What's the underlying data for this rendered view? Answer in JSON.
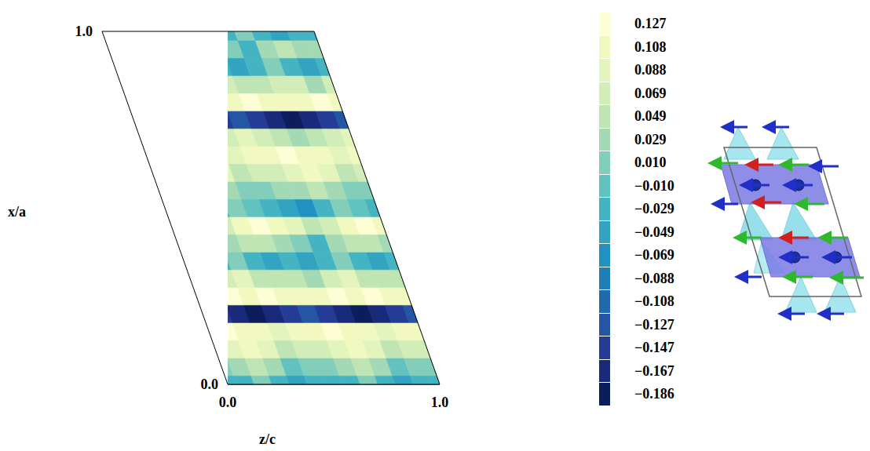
{
  "chart_data": {
    "type": "contour",
    "xlabel": "z/c",
    "ylabel": "x/a",
    "x": [
      0,
      0.083,
      0.167,
      0.25,
      0.333,
      0.417,
      0.5,
      0.583,
      0.667,
      0.75,
      0.833,
      0.917,
      1
    ],
    "y": [
      0,
      0.05,
      0.1,
      0.15,
      0.2,
      0.25,
      0.3,
      0.35,
      0.4,
      0.45,
      0.5,
      0.55,
      0.6,
      0.65,
      0.7,
      0.75,
      0.8,
      0.85,
      0.9,
      0.95,
      1
    ],
    "xlim": [
      0,
      1
    ],
    "ylim": [
      0,
      1
    ],
    "xticks": [
      {
        "value": 0,
        "label": "0.0"
      },
      {
        "value": 1,
        "label": "1.0"
      }
    ],
    "yticks": [
      {
        "value": 0,
        "label": "0.0"
      },
      {
        "value": 1,
        "label": "1.0"
      }
    ],
    "cells": [
      [
        -0.03,
        -0.02,
        0.0,
        -0.03,
        -0.05,
        -0.03,
        -0.03,
        -0.02,
        0.0,
        -0.03,
        -0.05,
        -0.03,
        -0.03
      ],
      [
        0.01,
        0.03,
        0.05,
        0.02,
        -0.01,
        0.0,
        0.01,
        0.03,
        0.05,
        0.02,
        -0.01,
        0.0,
        0.01
      ],
      [
        0.07,
        0.09,
        0.1,
        0.08,
        0.05,
        0.06,
        0.07,
        0.09,
        0.1,
        0.08,
        0.05,
        0.06,
        0.07
      ],
      [
        0.11,
        0.12,
        0.11,
        0.1,
        0.09,
        0.1,
        0.11,
        0.12,
        0.11,
        0.1,
        0.09,
        0.1,
        0.11
      ],
      [
        -0.13,
        -0.15,
        -0.17,
        -0.186,
        -0.17,
        -0.15,
        -0.13,
        -0.15,
        -0.17,
        -0.186,
        -0.17,
        -0.15,
        -0.13
      ],
      [
        0.1,
        0.11,
        0.12,
        0.11,
        0.12,
        0.11,
        0.1,
        0.11,
        0.12,
        0.11,
        0.12,
        0.11,
        0.1
      ],
      [
        0.05,
        0.03,
        0.06,
        0.08,
        0.05,
        0.04,
        0.05,
        0.03,
        0.06,
        0.08,
        0.05,
        0.04,
        0.05
      ],
      [
        -0.03,
        -0.05,
        -0.02,
        0.01,
        -0.02,
        -0.04,
        -0.03,
        -0.05,
        -0.02,
        0.01,
        -0.02,
        -0.04,
        -0.03
      ],
      [
        0.03,
        0.0,
        -0.03,
        0.02,
        0.05,
        0.04,
        0.03,
        0.0,
        -0.03,
        0.02,
        0.05,
        0.04,
        0.03
      ],
      [
        0.1,
        0.08,
        0.04,
        0.07,
        0.11,
        0.12,
        0.1,
        0.08,
        0.04,
        0.07,
        0.11,
        0.12,
        0.1
      ],
      [
        -0.02,
        -0.04,
        -0.06,
        -0.03,
        0.0,
        -0.01,
        -0.02,
        -0.04,
        -0.06,
        -0.03,
        0.0,
        -0.01,
        -0.02
      ],
      [
        0.01,
        0.02,
        0.03,
        0.05,
        0.02,
        0.0,
        0.01,
        0.02,
        0.03,
        0.05,
        0.02,
        0.0,
        0.01
      ],
      [
        0.06,
        0.07,
        0.09,
        0.1,
        0.08,
        0.05,
        0.06,
        0.07,
        0.09,
        0.1,
        0.08,
        0.05,
        0.06
      ],
      [
        0.1,
        0.11,
        0.12,
        0.11,
        0.1,
        0.09,
        0.1,
        0.11,
        0.12,
        0.11,
        0.1,
        0.09,
        0.1
      ],
      [
        0.08,
        0.06,
        0.04,
        0.03,
        0.05,
        0.07,
        0.08,
        0.06,
        0.04,
        0.03,
        0.05,
        0.07,
        0.08
      ],
      [
        -0.12,
        -0.15,
        -0.17,
        -0.186,
        -0.17,
        -0.14,
        -0.12,
        -0.15,
        -0.17,
        -0.186,
        -0.17,
        -0.14,
        -0.12
      ],
      [
        0.11,
        0.12,
        0.11,
        0.1,
        0.11,
        0.12,
        0.11,
        0.12,
        0.11,
        0.1,
        0.11,
        0.12,
        0.11
      ],
      [
        0.06,
        0.04,
        0.05,
        0.07,
        0.06,
        0.03,
        0.06,
        0.04,
        0.05,
        0.07,
        0.06,
        0.03,
        0.06
      ],
      [
        -0.02,
        -0.04,
        -0.03,
        0.0,
        -0.02,
        -0.05,
        -0.02,
        -0.04,
        -0.03,
        0.0,
        -0.02,
        -0.05,
        -0.02
      ],
      [
        0.03,
        0.01,
        -0.02,
        0.02,
        0.05,
        0.03,
        0.03,
        0.01,
        -0.02,
        0.02,
        0.05,
        0.03,
        0.03
      ],
      [
        -0.03,
        -0.02,
        0.0,
        -0.03,
        -0.05,
        -0.03,
        -0.03,
        -0.02,
        0.0,
        -0.03,
        -0.05,
        -0.03,
        -0.03
      ]
    ],
    "colorbar_lim": [
      -0.186,
      0.127
    ],
    "colorbar_ticks": [
      0.127,
      0.108,
      0.088,
      0.069,
      0.049,
      0.029,
      {
        "value": 0.01,
        "label": "0.010"
      },
      {
        "value": -0.01,
        "label": "−0.010"
      },
      {
        "value": -0.029,
        "label": "−0.029"
      },
      {
        "value": -0.049,
        "label": "−0.049"
      },
      {
        "value": -0.069,
        "label": "−0.069"
      },
      {
        "value": -0.088,
        "label": "−0.088"
      },
      {
        "value": -0.108,
        "label": "−0.108"
      },
      {
        "value": -0.127,
        "label": "−0.127"
      },
      {
        "value": -0.147,
        "label": "−0.147"
      },
      {
        "value": -0.167,
        "label": "−0.167"
      },
      {
        "value": -0.186,
        "label": "−0.186"
      }
    ]
  }
}
